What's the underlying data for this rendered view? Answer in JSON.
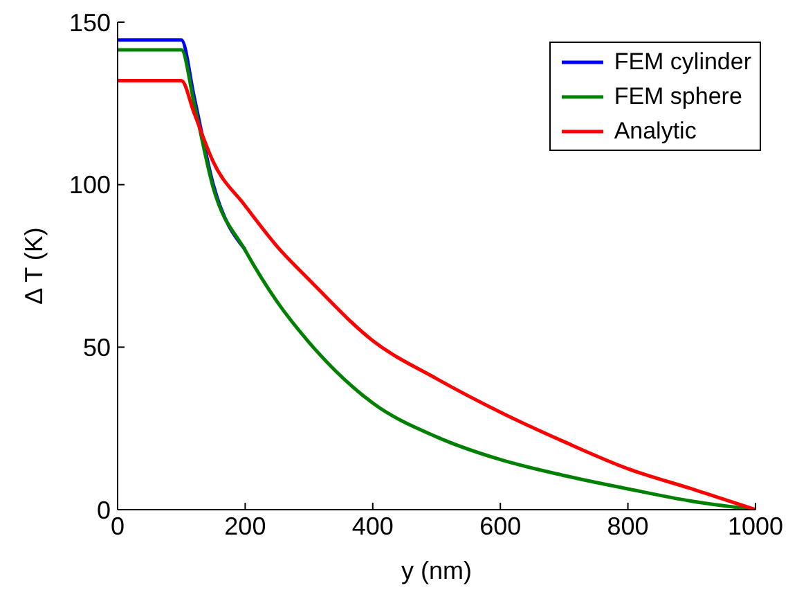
{
  "chart_data": {
    "type": "line",
    "xlabel": "y (nm)",
    "ylabel": "Δ T (K)",
    "xlim": [
      0,
      1000
    ],
    "ylim": [
      0,
      150
    ],
    "xticks": [
      0,
      200,
      400,
      600,
      800,
      1000
    ],
    "yticks": [
      0,
      50,
      100,
      150
    ],
    "grid": false,
    "legend": "top right",
    "marker": "none",
    "line_style": "solid",
    "x": [
      0,
      100,
      120,
      150,
      200,
      250,
      300,
      400,
      500,
      600,
      700,
      800,
      900,
      1000
    ],
    "series": [
      {
        "name": "FEM cylinder",
        "color": "#0000ff",
        "values": [
          144.5,
          144.5,
          127,
          100,
          80,
          null,
          null,
          null,
          null,
          null,
          null,
          null,
          null,
          null
        ]
      },
      {
        "name": "FEM sphere",
        "color": "#008000",
        "values": [
          141.5,
          141.5,
          125,
          99,
          79.8,
          64,
          51.5,
          32.8,
          22.4,
          15.4,
          10.5,
          6.4,
          2.6,
          0
        ]
      },
      {
        "name": "Analytic",
        "color": "#ff0000",
        "values": [
          132,
          132,
          122,
          107,
          93.5,
          81,
          70.8,
          52,
          40.3,
          30,
          20.9,
          12.6,
          6.4,
          0
        ]
      }
    ]
  }
}
